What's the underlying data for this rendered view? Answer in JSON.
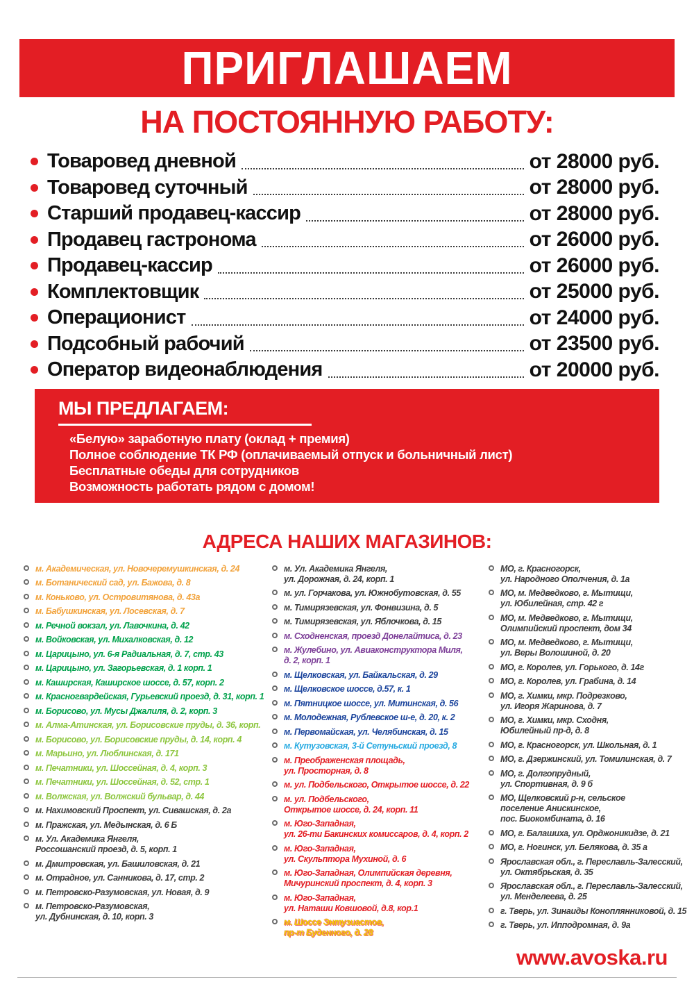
{
  "page": {
    "banner_title": "ПРИГЛАШАЕМ",
    "subtitle": "НА ПОСТОЯННУЮ РАБОТУ:",
    "footer_url": "www.avoska.ru"
  },
  "jobs": [
    {
      "title": "Товаровед дневной",
      "salary": "от 28000 руб."
    },
    {
      "title": "Товаровед суточный",
      "salary": "от 28000 руб."
    },
    {
      "title": "Старший продавец-кассир",
      "salary": "от 28000 руб."
    },
    {
      "title": "Продавец гастронома",
      "salary": "от 26000 руб."
    },
    {
      "title": "Продавец-кассир",
      "salary": "от 26000 руб."
    },
    {
      "title": "Комплектовщик",
      "salary": "от 25000 руб."
    },
    {
      "title": "Операционист",
      "salary": "от 24000 руб."
    },
    {
      "title": "Подсобный рабочий",
      "salary": "от 23500 руб."
    },
    {
      "title": "Оператор видеонаблюдения",
      "salary": "от 20000 руб."
    }
  ],
  "offer": {
    "title": "МЫ ПРЕДЛАГАЕМ:",
    "items": [
      "«Белую» заработную плату (оклад + премия)",
      "Полное соблюдение ТК РФ (оплачиваемый отпуск и больничный лист)",
      "Бесплатные обеды для сотрудников",
      "Возможность работать рядом с домом!"
    ]
  },
  "addresses": {
    "heading": "АДРЕСА НАШИХ МАГАЗИНОВ:",
    "col1": [
      {
        "color": "orange",
        "text": "м. Академическая, ул. Новочеремушкинская, д. 24"
      },
      {
        "color": "orange",
        "text": "м. Ботанический сад, ул. Бажова, д. 8"
      },
      {
        "color": "orange",
        "text": "м. Коньково, ул. Островитянова, д. 43а"
      },
      {
        "color": "orange",
        "text": "м. Бабушкинская, ул. Лосевская, д. 7"
      },
      {
        "color": "green",
        "text": "м. Речной вокзал, ул. Лавочкина, д. 42"
      },
      {
        "color": "green",
        "text": "м. Войковская, ул. Михалковская, д. 12"
      },
      {
        "color": "green",
        "text": "м. Царицыно, ул. 6-я Радиальная, д. 7, стр. 43"
      },
      {
        "color": "green",
        "text": "м. Царицыно, ул. Загорьевская, д. 1 корп. 1"
      },
      {
        "color": "green",
        "text": "м. Каширская, Каширское шоссе, д. 57, корп. 2"
      },
      {
        "color": "green",
        "text": "м. Красногвардейская, Гурьевский проезд, д. 31, корп. 1"
      },
      {
        "color": "green",
        "text": "м. Борисово, ул. Мусы Джалиля, д. 2, корп. 3"
      },
      {
        "color": "lightgreen",
        "text": "м. Алма-Атинская, ул. Борисовские пруды, д. 36, корп."
      },
      {
        "color": "lightgreen",
        "text": "м. Борисово, ул. Борисовские пруды, д. 14, корп. 4"
      },
      {
        "color": "lightgreen",
        "text": "м. Марьино, ул. Люблинская, д. 171"
      },
      {
        "color": "lightgreen",
        "text": "м. Печатники, ул. Шоссейная, д. 4, корп. 3"
      },
      {
        "color": "lightgreen",
        "text": "м. Печатники, ул. Шоссейная, д. 52, стр. 1"
      },
      {
        "color": "lightgreen",
        "text": "м. Волжская, ул. Волжский бульвар, д. 44"
      },
      {
        "color": "dark",
        "text": "м. Нахимовский Проспект, ул. Сивашская, д. 2а"
      },
      {
        "color": "dark",
        "text": "м. Пражская, ул. Медынская, д. 6 Б"
      },
      {
        "color": "dark",
        "text": "м. Ул. Академика Янгеля,\nРоссошанский проезд, д. 5, корп. 1"
      },
      {
        "color": "dark",
        "text": "м. Дмитровская, ул. Башиловская, д. 21"
      },
      {
        "color": "dark",
        "text": "м. Отрадное, ул. Санникова, д. 17, стр. 2"
      },
      {
        "color": "dark",
        "text": "м. Петровско-Разумовская, ул. Новая, д. 9"
      },
      {
        "color": "dark",
        "text": "м. Петровско-Разумовская,\nул. Дубнинская, д. 10, корп. 3"
      }
    ],
    "col2": [
      {
        "color": "dark",
        "text": "м. Ул. Академика Янгеля,\nул. Дорожная, д. 24, корп. 1"
      },
      {
        "color": "dark",
        "text": "м. ул. Горчакова, ул. Южнобутовская, д. 55"
      },
      {
        "color": "dark",
        "text": "м. Тимирязевская, ул. Фонвизина, д. 5"
      },
      {
        "color": "dark",
        "text": "м. Тимирязевская, ул. Яблочкова, д. 15"
      },
      {
        "color": "purple",
        "text": "м. Сходненская, проезд Донелайтиса, д. 23"
      },
      {
        "color": "purple",
        "text": "м. Жулебино, ул. Авиаконструктора Миля,\nд. 2, корп. 1"
      },
      {
        "color": "blue",
        "text": "м. Щелковская, ул. Байкальская, д. 29"
      },
      {
        "color": "blue",
        "text": "м. Щелковское шоссе, д.57, к. 1"
      },
      {
        "color": "blue",
        "text": "м. Пятницкое шоссе, ул. Митинская, д. 56"
      },
      {
        "color": "blue",
        "text": "м. Молодежная, Рублевское ш-е, д. 20, к. 2"
      },
      {
        "color": "blue",
        "text": "м. Первомайская, ул. Челябинская, д. 15"
      },
      {
        "color": "cyan",
        "text": "м. Кутузовская, 3-й Сетуньский проезд, 8"
      },
      {
        "color": "red",
        "text": "м. Преображенская площадь,\nул. Просторная, д. 8"
      },
      {
        "color": "red",
        "text": "м. ул. Подбельского, Открытое шоссе, д. 22"
      },
      {
        "color": "red",
        "text": "м. ул. Подбельского,\nОткрытое шоссе, д. 24, корп. 11"
      },
      {
        "color": "red",
        "text": "м. Юго-Западная,\nул. 26-ти Бакинских комиссаров, д. 4, корп. 2"
      },
      {
        "color": "red",
        "text": "м. Юго-Западная,\nул. Скульптора Мухиной, д. 6"
      },
      {
        "color": "red",
        "text": "м. Юго-Западная, Олимпийская деревня,\nМичуринский проспект, д. 4, корп. 3"
      },
      {
        "color": "red",
        "text": "м. Юго-Западная,\nул. Наташи Ковшовой, д.8, кор.1"
      },
      {
        "color": "yellow",
        "text": "м. Шоссе Энтузиастов,\nпр-т Буденного, д. 28"
      }
    ],
    "col3": [
      {
        "color": "dark",
        "text": "МО, г. Красногорск,\nул. Народного Ополчения, д. 1а"
      },
      {
        "color": "dark",
        "text": "МО, м. Медведково, г. Мытищи,\nул. Юбилейная, стр. 42 г"
      },
      {
        "color": "dark",
        "text": "МО, м. Медведково, г. Мытищи,\nОлимпийский проспект, дом 34"
      },
      {
        "color": "dark",
        "text": "МО, м. Медведково, г. Мытищи,\nул. Веры Волошиной, д. 20"
      },
      {
        "color": "dark",
        "text": "МО, г. Королев, ул. Горького, д. 14г"
      },
      {
        "color": "dark",
        "text": "МО, г. Королев, ул. Грабина, д. 14"
      },
      {
        "color": "dark",
        "text": "МО, г. Химки, мкр. Подрезково,\nул. Игоря Жаринова, д. 7"
      },
      {
        "color": "dark",
        "text": "МО, г. Химки, мкр. Сходня,\nЮбилейный пр-д, д. 8"
      },
      {
        "color": "dark",
        "text": "МО, г. Красногорск, ул. Школьная, д. 1"
      },
      {
        "color": "dark",
        "text": "МО, г. Дзержинский, ул. Томилинская, д. 7"
      },
      {
        "color": "dark",
        "text": "МО, г. Долгопрудный,\nул. Спортивная, д. 9 б"
      },
      {
        "color": "dark",
        "text": "МО, Щелковский р-н, сельское\nпоселение Анискинское,\nпос. Биокомбината, д. 16"
      },
      {
        "color": "dark",
        "text": "МО, г. Балашиха, ул. Орджоникидзе, д. 21"
      },
      {
        "color": "dark",
        "text": "МО, г. Ногинск, ул. Белякова, д. 35 а"
      },
      {
        "color": "dark",
        "text": "Ярославская обл., г. Переславль-Залесский,\nул. Октябрьская, д. 35"
      },
      {
        "color": "dark",
        "text": "Ярославская обл., г. Переславль-Залесский,\nул. Менделеева, д. 25"
      },
      {
        "color": "dark",
        "text": "г. Тверь, ул. Зинаиды Коноплянниковой, д. 15"
      },
      {
        "color": "dark",
        "text": "г. Тверь, ул. Ипподромная, д. 9а"
      }
    ]
  },
  "palette": {
    "brand_red": "#E31E24",
    "address_orange": "#F2A33C",
    "address_green": "#00A14B",
    "address_light_green": "#8DC63F",
    "address_dark": "#3D3D3D",
    "address_purple": "#7D3F98",
    "address_blue": "#1B449C",
    "address_cyan": "#27AAE1",
    "address_red": "#E31E24",
    "address_yellow": "#F2CB05"
  }
}
